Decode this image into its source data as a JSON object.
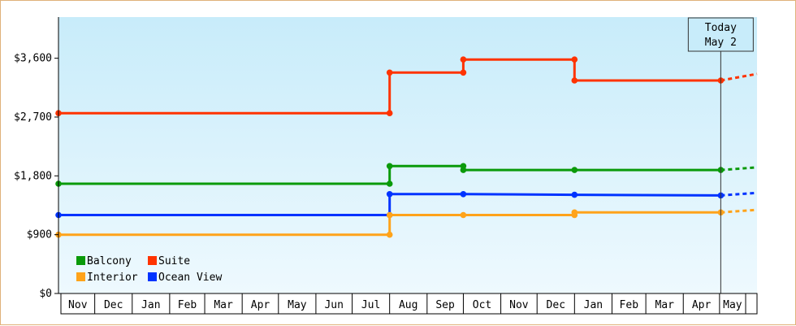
{
  "chart_data": {
    "type": "line",
    "step": true,
    "x": [
      "2023-11-01",
      "2023-12-01",
      "2024-01-01",
      "2024-02-01",
      "2024-03-01",
      "2024-04-01",
      "2024-05-01",
      "2024-06-01",
      "2024-07-01",
      "2024-08-01",
      "2024-09-01",
      "2024-10-01",
      "2024-11-01",
      "2024-12-01",
      "2025-01-01",
      "2025-02-01",
      "2025-03-01",
      "2025-04-01",
      "2025-05-01"
    ],
    "tick_labels": [
      "Nov",
      "Dec",
      "Jan",
      "Feb",
      "Mar",
      "Apr",
      "May",
      "Jun",
      "Jul",
      "Aug",
      "Sep",
      "Oct",
      "Nov",
      "Dec",
      "Jan",
      "Feb",
      "Mar",
      "Apr",
      "May"
    ],
    "y_ticks": [
      {
        "value": 0,
        "label": "$0"
      },
      {
        "value": 900,
        "label": "$900"
      },
      {
        "value": 1800,
        "label": "$1,800"
      },
      {
        "value": 2700,
        "label": "$2,700"
      },
      {
        "value": 3600,
        "label": "$3,600"
      }
    ],
    "ylim": [
      0,
      4230
    ],
    "xlim": [
      "2023-11-01",
      "2025-06-01"
    ],
    "background": {
      "top": "#c8ecfa",
      "bottom": "#eef9fe"
    },
    "today": {
      "date": "2025-05-02",
      "label_line1": "Today",
      "label_line2": "May 2"
    },
    "legend_position": "bottom-left",
    "series": [
      {
        "name": "Suite",
        "color": "#ff3300",
        "points": [
          [
            "2023-11-01",
            2760
          ],
          [
            "2024-08-01",
            2760
          ],
          [
            "2024-08-01",
            3380
          ],
          [
            "2024-10-01",
            3380
          ],
          [
            "2024-10-01",
            3580
          ],
          [
            "2025-01-01",
            3580
          ],
          [
            "2025-01-01",
            3260
          ],
          [
            "2025-05-02",
            3260
          ]
        ],
        "projection": [
          [
            "2025-05-02",
            3260
          ],
          [
            "2025-06-01",
            3360
          ]
        ]
      },
      {
        "name": "Balcony",
        "color": "#0a9a0a",
        "points": [
          [
            "2023-11-01",
            1680
          ],
          [
            "2024-08-01",
            1680
          ],
          [
            "2024-08-01",
            1950
          ],
          [
            "2024-10-01",
            1950
          ],
          [
            "2024-10-01",
            1890
          ],
          [
            "2025-01-01",
            1890
          ],
          [
            "2025-05-02",
            1890
          ]
        ],
        "projection": [
          [
            "2025-05-02",
            1890
          ],
          [
            "2025-06-01",
            1930
          ]
        ]
      },
      {
        "name": "Ocean View",
        "color": "#0033ff",
        "points": [
          [
            "2023-11-01",
            1200
          ],
          [
            "2024-08-01",
            1200
          ],
          [
            "2024-08-01",
            1520
          ],
          [
            "2024-10-01",
            1520
          ],
          [
            "2025-01-01",
            1510
          ],
          [
            "2025-05-02",
            1500
          ]
        ],
        "projection": [
          [
            "2025-05-02",
            1500
          ],
          [
            "2025-06-01",
            1540
          ]
        ]
      },
      {
        "name": "Interior",
        "color": "#ffa31a",
        "points": [
          [
            "2023-11-01",
            900
          ],
          [
            "2024-08-01",
            900
          ],
          [
            "2024-08-01",
            1200
          ],
          [
            "2024-10-01",
            1200
          ],
          [
            "2025-01-01",
            1200
          ],
          [
            "2025-01-01",
            1240
          ],
          [
            "2025-05-02",
            1240
          ]
        ],
        "projection": [
          [
            "2025-05-02",
            1240
          ],
          [
            "2025-06-01",
            1280
          ]
        ]
      }
    ],
    "legend": [
      {
        "name": "Balcony",
        "color": "#0a9a0a"
      },
      {
        "name": "Suite",
        "color": "#ff3300"
      },
      {
        "name": "Interior",
        "color": "#ffa31a"
      },
      {
        "name": "Ocean View",
        "color": "#0033ff"
      }
    ]
  }
}
